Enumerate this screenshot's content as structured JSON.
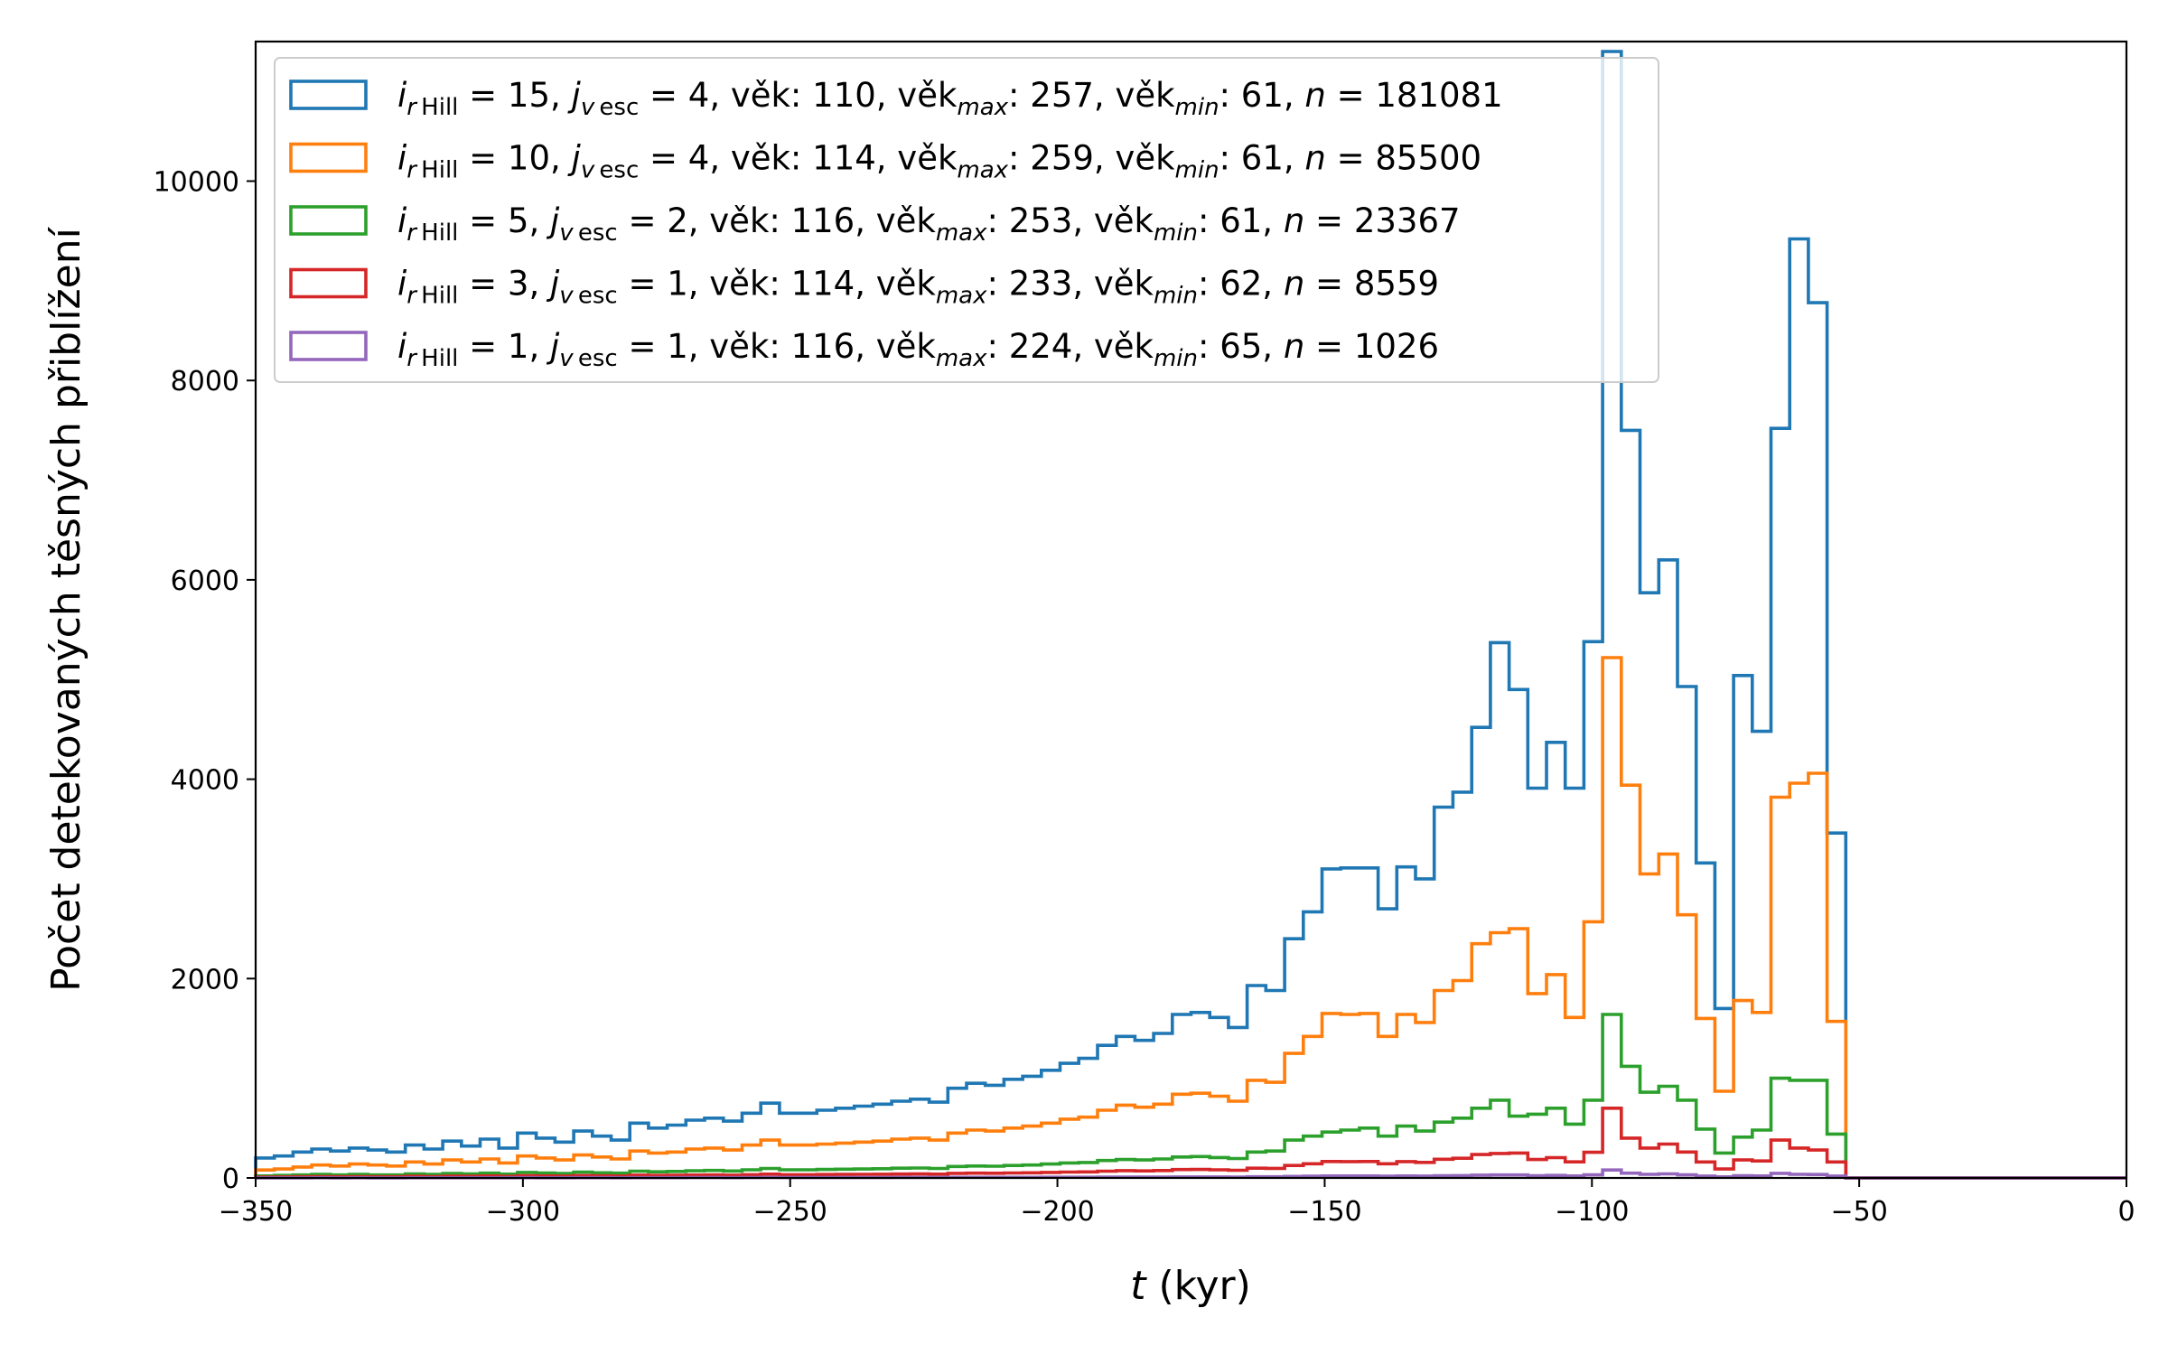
{
  "chart_data": {
    "type": "histogram",
    "xlabel_italic": "t",
    "xlabel_unit": " (kyr)",
    "ylabel": "Počet detekovaných těsných přiblížení",
    "xlim": [
      -350,
      0
    ],
    "ylim": [
      0,
      11400
    ],
    "xticks": [
      -350,
      -300,
      -250,
      -200,
      -150,
      -100,
      -50,
      0
    ],
    "yticks": [
      0,
      2000,
      4000,
      6000,
      8000,
      10000
    ],
    "legend_position": "upper-left",
    "grid": false,
    "bin_width": 3.5,
    "bin_start": -350,
    "series": [
      {
        "legend": {
          "ri": "15",
          "jv": "4",
          "age": "110",
          "agemax": "257",
          "agemin": "61",
          "n": "181081"
        },
        "color": "#1f77b4",
        "values": [
          200,
          220,
          260,
          290,
          270,
          300,
          280,
          260,
          330,
          290,
          370,
          320,
          390,
          300,
          450,
          400,
          360,
          470,
          420,
          380,
          550,
          500,
          530,
          580,
          600,
          570,
          650,
          750,
          650,
          650,
          680,
          700,
          720,
          740,
          770,
          790,
          760,
          900,
          950,
          930,
          990,
          1020,
          1080,
          1150,
          1200,
          1330,
          1420,
          1380,
          1450,
          1640,
          1660,
          1610,
          1510,
          1930,
          1880,
          2400,
          2670,
          3100,
          3110,
          3110,
          2700,
          3120,
          3000,
          3720,
          3870,
          4520,
          5370,
          4900,
          3910,
          4370,
          3910,
          5380,
          11300,
          7500,
          5870,
          6200,
          4930,
          3160,
          1700,
          5040,
          4480,
          7520,
          9420,
          8780,
          3460,
          0,
          0,
          0,
          0,
          0,
          0,
          0,
          0,
          0,
          0,
          0,
          0,
          0,
          0,
          0
        ]
      },
      {
        "legend": {
          "ri": "10",
          "jv": "4",
          "age": "114",
          "agemax": "259",
          "agemin": "61",
          "n": "85500"
        },
        "color": "#ff7f0e",
        "values": [
          80,
          90,
          110,
          130,
          120,
          140,
          130,
          120,
          160,
          140,
          180,
          160,
          190,
          150,
          220,
          200,
          180,
          230,
          210,
          190,
          270,
          250,
          260,
          290,
          300,
          280,
          330,
          380,
          330,
          330,
          340,
          350,
          360,
          370,
          390,
          400,
          380,
          450,
          480,
          470,
          500,
          520,
          550,
          590,
          610,
          680,
          730,
          710,
          740,
          840,
          850,
          820,
          770,
          980,
          960,
          1250,
          1420,
          1650,
          1640,
          1650,
          1420,
          1640,
          1560,
          1880,
          1980,
          2350,
          2460,
          2500,
          1850,
          2040,
          1610,
          2570,
          5220,
          3940,
          3050,
          3250,
          2640,
          1600,
          870,
          1780,
          1660,
          3820,
          3960,
          4060,
          1570,
          0,
          0,
          0,
          0,
          0,
          0,
          0,
          0,
          0,
          0,
          0,
          0,
          0,
          0,
          0
        ]
      },
      {
        "legend": {
          "ri": " 5",
          "jv": "2",
          "age": "116",
          "agemax": "253",
          "agemin": "61",
          "n": "23367"
        },
        "color": "#2ca02c",
        "values": [
          20,
          25,
          30,
          35,
          30,
          35,
          30,
          30,
          40,
          35,
          45,
          40,
          48,
          38,
          55,
          50,
          45,
          58,
          52,
          48,
          68,
          62,
          65,
          72,
          75,
          70,
          82,
          95,
          82,
          82,
          85,
          88,
          90,
          92,
          98,
          100,
          95,
          115,
          120,
          118,
          125,
          130,
          140,
          150,
          155,
          175,
          185,
          180,
          190,
          210,
          215,
          205,
          195,
          260,
          270,
          380,
          420,
          460,
          480,
          500,
          420,
          520,
          470,
          560,
          600,
          700,
          780,
          620,
          640,
          700,
          540,
          780,
          1640,
          1120,
          860,
          920,
          780,
          490,
          250,
          410,
          480,
          1000,
          980,
          980,
          440,
          0,
          0,
          0,
          0,
          0,
          0,
          0,
          0,
          0,
          0,
          0,
          0,
          0,
          0,
          0
        ]
      },
      {
        "legend": {
          "ri": " 3",
          "jv": "1",
          "age": "114",
          "agemax": "233",
          "agemin": "62",
          "n": "8559"
        },
        "color": "#d62728",
        "values": [
          8,
          10,
          12,
          14,
          12,
          14,
          12,
          12,
          16,
          14,
          18,
          16,
          20,
          15,
          22,
          20,
          18,
          24,
          21,
          19,
          28,
          25,
          26,
          29,
          30,
          28,
          33,
          38,
          33,
          33,
          34,
          35,
          36,
          37,
          39,
          40,
          38,
          46,
          48,
          47,
          50,
          52,
          55,
          59,
          61,
          68,
          73,
          71,
          74,
          84,
          85,
          82,
          77,
          98,
          96,
          125,
          142,
          165,
          164,
          165,
          142,
          164,
          156,
          188,
          198,
          235,
          246,
          250,
          185,
          204,
          161,
          257,
          700,
          400,
          300,
          340,
          260,
          160,
          90,
          180,
          170,
          380,
          300,
          280,
          160,
          0,
          0,
          0,
          0,
          0,
          0,
          0,
          0,
          0,
          0,
          0,
          0,
          0,
          0,
          0
        ]
      },
      {
        "legend": {
          "ri": " 1",
          "jv": "1",
          "age": "116",
          "agemax": "224",
          "agemin": "65",
          "n": "1026"
        },
        "color": "#9467bd",
        "values": [
          1,
          1,
          1,
          2,
          1,
          2,
          1,
          1,
          2,
          2,
          2,
          2,
          2,
          2,
          3,
          2,
          2,
          3,
          3,
          2,
          3,
          3,
          3,
          4,
          4,
          3,
          4,
          5,
          4,
          4,
          4,
          4,
          4,
          4,
          5,
          5,
          5,
          6,
          6,
          6,
          6,
          6,
          7,
          7,
          7,
          8,
          9,
          9,
          9,
          10,
          10,
          10,
          9,
          12,
          12,
          15,
          17,
          20,
          20,
          20,
          17,
          20,
          19,
          23,
          24,
          28,
          30,
          30,
          22,
          25,
          20,
          31,
          80,
          48,
          36,
          41,
          31,
          19,
          11,
          22,
          20,
          46,
          36,
          34,
          19,
          0,
          0,
          0,
          0,
          0,
          0,
          0,
          0,
          0,
          0,
          0,
          0,
          0,
          0,
          0
        ]
      }
    ]
  }
}
